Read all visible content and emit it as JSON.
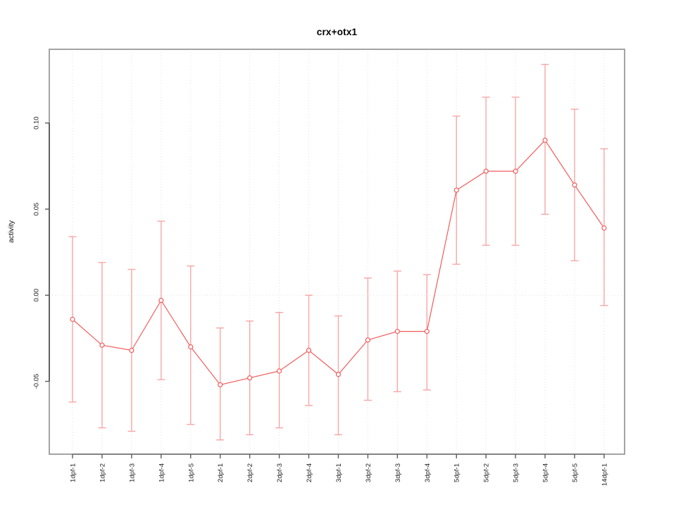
{
  "chart": {
    "title": "crx+otx1",
    "ylabel": "activity"
  },
  "chart_data": {
    "type": "line",
    "title": "crx+otx1",
    "xlabel": "",
    "ylabel": "activity",
    "legend_position": "none",
    "grid": "dotted vertical gridline at every category; dotted horizontal line at y=0",
    "point_style": "open-circle",
    "error_bars": true,
    "categories": [
      "1dpf-1",
      "1dpf-2",
      "1dpf-3",
      "1dpf-4",
      "1dpf-5",
      "2dpf-1",
      "2dpf-2",
      "2dpf-3",
      "2dpf-4",
      "3dpf-1",
      "3dpf-2",
      "3dpf-3",
      "3dpf-4",
      "5dpf-1",
      "5dpf-2",
      "5dpf-3",
      "5dpf-4",
      "5dpf-5",
      "14dpf-1"
    ],
    "values": [
      -0.014,
      -0.029,
      -0.032,
      -0.003,
      -0.03,
      -0.052,
      -0.048,
      -0.044,
      -0.032,
      -0.046,
      -0.026,
      -0.021,
      -0.021,
      0.061,
      0.072,
      0.072,
      0.09,
      0.064,
      0.039
    ],
    "upper": [
      0.034,
      0.019,
      0.015,
      0.043,
      0.017,
      -0.019,
      -0.015,
      -0.01,
      0.0,
      -0.012,
      0.01,
      0.014,
      0.012,
      0.104,
      0.115,
      0.115,
      0.134,
      0.108,
      0.085
    ],
    "lower": [
      -0.062,
      -0.077,
      -0.079,
      -0.049,
      -0.075,
      -0.084,
      -0.081,
      -0.077,
      -0.064,
      -0.081,
      -0.061,
      -0.056,
      -0.055,
      0.018,
      0.029,
      0.029,
      0.047,
      0.02,
      -0.006
    ],
    "yticks": [
      -0.05,
      0,
      0.05,
      0.1
    ],
    "ytick_labels": [
      "-0.05",
      "0.00",
      "0.05",
      "0.10"
    ],
    "ylim": [
      -0.0923,
      0.1428
    ],
    "colors": {
      "line": "#f25b5b",
      "point_fill": "#ffffff",
      "error_bar": "#f7a6a6",
      "grid": "#e2e2e2",
      "frame": "#9a9a9a",
      "axis": "#5a5a5a",
      "text": "#1f1f1f"
    }
  }
}
